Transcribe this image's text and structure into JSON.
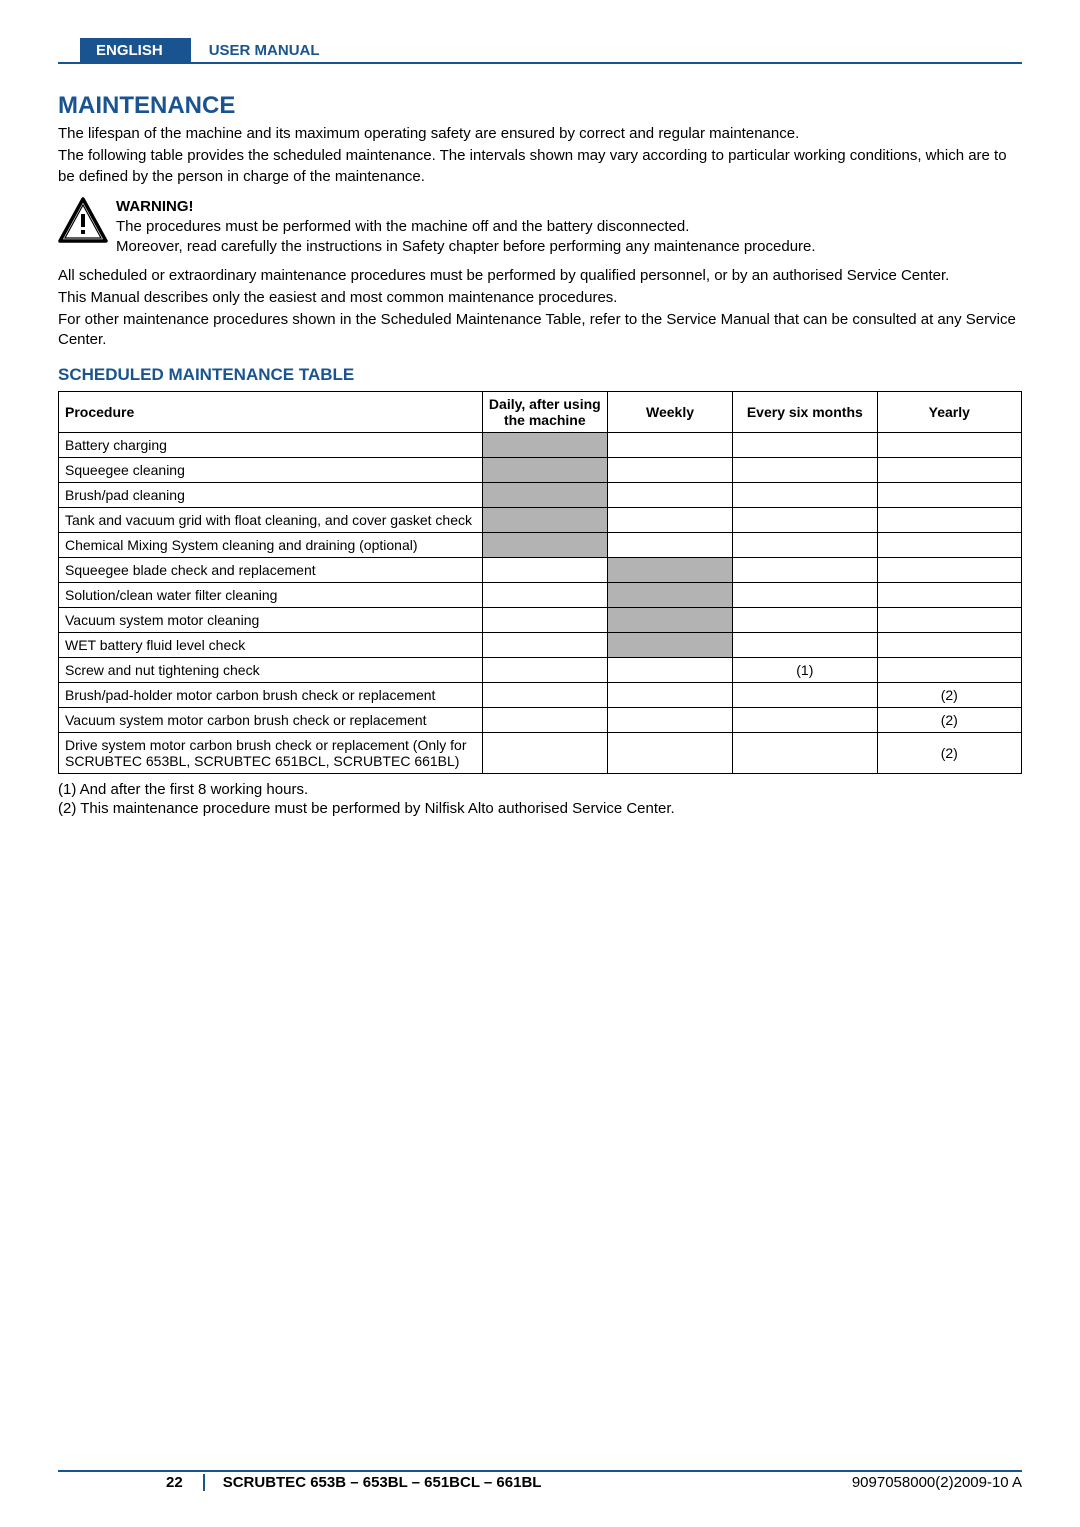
{
  "header": {
    "lang": "ENGLISH",
    "manual": "USER MANUAL"
  },
  "title": "MAINTENANCE",
  "intro": [
    "The lifespan of the machine and its maximum operating safety are ensured by correct and regular maintenance.",
    "The following table provides the scheduled maintenance. The intervals shown may vary according to particular working conditions, which are to be deﬁned by the person in charge of the maintenance."
  ],
  "warning": {
    "head": "WARNING!",
    "lines": [
      "The procedures must be performed with the machine off and the battery disconnected.",
      "Moreover, read carefully the instructions in Safety chapter before performing any maintenance procedure."
    ]
  },
  "afterWarning": [
    "All scheduled or extraordinary maintenance procedures must be performed by qualiﬁed personnel, or by an authorised Service Center.",
    "This Manual describes only the easiest and most common maintenance procedures.",
    "For other maintenance procedures shown in the Scheduled Maintenance Table, refer to the Service Manual that can be consulted at any Service Center."
  ],
  "tableTitle": "SCHEDULED MAINTENANCE TABLE",
  "columns": [
    "Procedure",
    "Daily, after using the machine",
    "Weekly",
    "Every six months",
    "Yearly"
  ],
  "colWidths": [
    "44%",
    "13%",
    "13%",
    "15%",
    "15%"
  ],
  "rows": [
    {
      "proc": "Battery charging",
      "marks": [
        "shade",
        "",
        "",
        ""
      ]
    },
    {
      "proc": "Squeegee cleaning",
      "marks": [
        "shade",
        "",
        "",
        ""
      ]
    },
    {
      "proc": "Brush/pad cleaning",
      "marks": [
        "shade",
        "",
        "",
        ""
      ]
    },
    {
      "proc": "Tank and vacuum grid with ﬂoat cleaning, and cover gasket check",
      "marks": [
        "shade",
        "",
        "",
        ""
      ]
    },
    {
      "proc": "Chemical Mixing System cleaning and draining (optional)",
      "marks": [
        "shade",
        "",
        "",
        ""
      ]
    },
    {
      "proc": "Squeegee blade check and replacement",
      "marks": [
        "",
        "shade",
        "",
        ""
      ]
    },
    {
      "proc": "Solution/clean water ﬁlter cleaning",
      "marks": [
        "",
        "shade",
        "",
        ""
      ]
    },
    {
      "proc": "Vacuum system motor cleaning",
      "marks": [
        "",
        "shade",
        "",
        ""
      ]
    },
    {
      "proc": "WET battery ﬂuid level check",
      "marks": [
        "",
        "shade",
        "",
        ""
      ]
    },
    {
      "proc": "Screw and nut tightening check",
      "marks": [
        "",
        "",
        "(1)",
        ""
      ]
    },
    {
      "proc": "Brush/pad-holder motor carbon brush check or replacement",
      "marks": [
        "",
        "",
        "",
        "(2)"
      ]
    },
    {
      "proc": "Vacuum system motor carbon brush check or replacement",
      "marks": [
        "",
        "",
        "",
        "(2)"
      ]
    },
    {
      "proc": "Drive system motor carbon brush check or replacement (Only for SCRUBTEC 653BL, SCRUBTEC 651BCL, SCRUBTEC 661BL)",
      "marks": [
        "",
        "",
        "",
        "(2)"
      ]
    }
  ],
  "footnotes": [
    "(1)   And after the ﬁrst 8 working hours.",
    "(2)   This maintenance procedure must be performed by Nilﬁsk Alto authorised Service Center."
  ],
  "footer": {
    "page": "22",
    "model": "SCRUBTEC 653B – 653BL – 651BCL – 661BL",
    "doc": "9097058000(2)2009-10 A"
  },
  "colors": {
    "brand": "#1a5490",
    "shade": "#b3b3b3",
    "border": "#000000",
    "background": "#ffffff"
  }
}
